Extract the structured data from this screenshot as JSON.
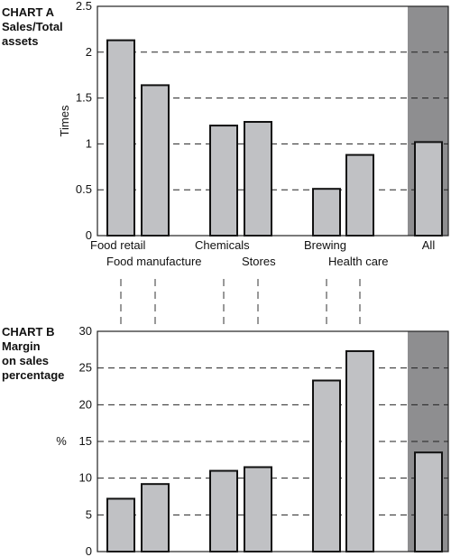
{
  "chart_data": [
    {
      "type": "bar",
      "title_lines": [
        "CHART A",
        "Sales/Total",
        "assets"
      ],
      "ylabel": "Times",
      "ylim": [
        0,
        2.5
      ],
      "yticks": [
        "0",
        "0.5",
        "1",
        "1.5",
        "2",
        "2.5"
      ],
      "grid": "dashed horizontal",
      "categories": [
        "Food retail",
        "Food manufacture",
        "Chemicals",
        "Stores",
        "Brewing",
        "Health care",
        "All"
      ],
      "values": [
        2.13,
        1.64,
        1.2,
        1.24,
        0.51,
        0.88,
        1.02
      ],
      "highlight": "All"
    },
    {
      "type": "bar",
      "title_lines": [
        "CHART B",
        "Margin",
        "on sales",
        "percentage"
      ],
      "ylabel": "%",
      "ylim": [
        0,
        30
      ],
      "yticks": [
        "0",
        "5",
        "10",
        "15",
        "20",
        "25",
        "30"
      ],
      "grid": "dashed horizontal",
      "categories": [
        "Food retail",
        "Food manufacture",
        "Chemicals",
        "Stores",
        "Brewing",
        "Health care",
        "All"
      ],
      "values": [
        7.2,
        9.2,
        11.0,
        11.5,
        23.3,
        27.3,
        13.5
      ],
      "highlight": "All"
    }
  ],
  "colors": {
    "bar_fill": "#c0c1c4",
    "highlight_band": "#8e8e90",
    "grid": "#222222",
    "axis": "#222222"
  }
}
